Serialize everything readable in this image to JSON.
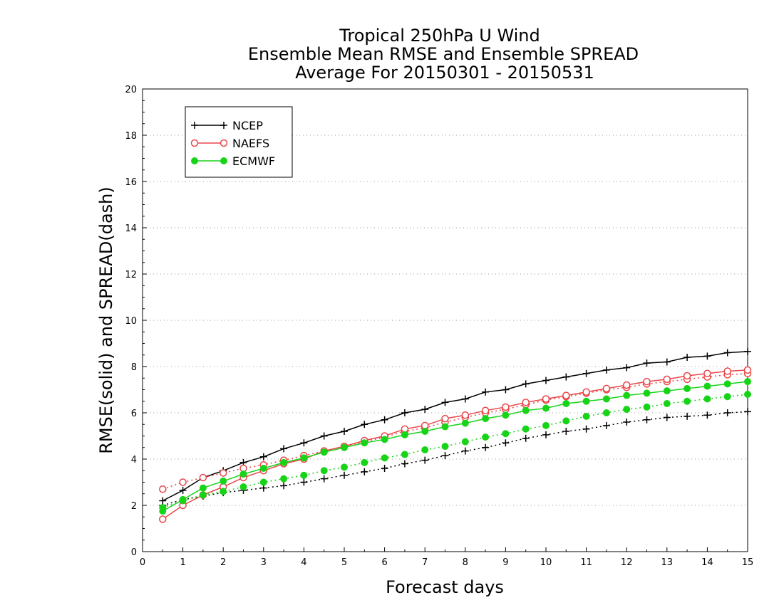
{
  "chart_data": {
    "type": "line",
    "title_lines": [
      "Tropical 250hPa U Wind",
      "Ensemble Mean RMSE and Ensemble SPREAD",
      "Average For 20150301 - 20150531"
    ],
    "xlabel": "Forecast days",
    "ylabel": "RMSE(solid) and SPREAD(dash)",
    "xlim": [
      0,
      15
    ],
    "ylim": [
      0,
      20
    ],
    "x_ticks": [
      "0",
      "1",
      "2",
      "3",
      "4",
      "5",
      "6",
      "7",
      "8",
      "9",
      "10",
      "11",
      "12",
      "13",
      "14",
      "15"
    ],
    "y_ticks": [
      "0",
      "2",
      "4",
      "6",
      "8",
      "10",
      "12",
      "14",
      "16",
      "18",
      "20"
    ],
    "y_tick_values": [
      0,
      2,
      4,
      6,
      8,
      10,
      12,
      14,
      16,
      18,
      20
    ],
    "grid": "horizontal dotted",
    "legend_position": "top-left",
    "x": [
      0.5,
      1,
      1.5,
      2,
      2.5,
      3,
      3.5,
      4,
      4.5,
      5,
      5.5,
      6,
      6.5,
      7,
      7.5,
      8,
      8.5,
      9,
      9.5,
      10,
      10.5,
      11,
      11.5,
      12,
      12.5,
      13,
      13.5,
      14,
      14.5,
      15
    ],
    "series": [
      {
        "name": "NCEP",
        "color": "#000000",
        "marker": "plus",
        "rmse": [
          2.2,
          2.65,
          3.2,
          3.5,
          3.85,
          4.1,
          4.45,
          4.7,
          5.0,
          5.2,
          5.5,
          5.7,
          6.0,
          6.15,
          6.45,
          6.6,
          6.9,
          7.0,
          7.25,
          7.4,
          7.55,
          7.7,
          7.85,
          7.95,
          8.15,
          8.2,
          8.4,
          8.45,
          8.6,
          8.65
        ],
        "spread": [
          2.0,
          2.25,
          2.4,
          2.55,
          2.65,
          2.75,
          2.85,
          3.0,
          3.15,
          3.3,
          3.45,
          3.6,
          3.8,
          3.95,
          4.15,
          4.35,
          4.5,
          4.7,
          4.9,
          5.05,
          5.2,
          5.3,
          5.45,
          5.6,
          5.7,
          5.8,
          5.85,
          5.9,
          6.0,
          6.05
        ]
      },
      {
        "name": "NAEFS",
        "color": "#e8474a",
        "marker": "open-circle",
        "rmse": [
          1.4,
          2.0,
          2.45,
          2.8,
          3.2,
          3.5,
          3.8,
          4.0,
          4.35,
          4.55,
          4.8,
          5.0,
          5.3,
          5.45,
          5.75,
          5.9,
          6.1,
          6.25,
          6.45,
          6.6,
          6.75,
          6.9,
          7.05,
          7.2,
          7.35,
          7.45,
          7.6,
          7.7,
          7.8,
          7.85
        ],
        "spread": [
          2.7,
          3.0,
          3.2,
          3.4,
          3.6,
          3.75,
          3.95,
          4.15,
          4.35,
          4.55,
          4.75,
          4.95,
          5.2,
          5.35,
          5.6,
          5.8,
          6.0,
          6.15,
          6.35,
          6.55,
          6.7,
          6.85,
          7.0,
          7.1,
          7.25,
          7.35,
          7.45,
          7.55,
          7.65,
          7.7
        ]
      },
      {
        "name": "ECMWF",
        "color": "#18d418",
        "marker": "filled-circle",
        "rmse": [
          1.75,
          2.25,
          2.75,
          3.05,
          3.35,
          3.6,
          3.85,
          4.05,
          4.3,
          4.5,
          4.7,
          4.85,
          5.05,
          5.2,
          5.4,
          5.55,
          5.75,
          5.9,
          6.1,
          6.2,
          6.4,
          6.5,
          6.6,
          6.75,
          6.85,
          6.95,
          7.05,
          7.15,
          7.25,
          7.35
        ],
        "spread": [
          1.9,
          2.2,
          2.45,
          2.6,
          2.8,
          3.0,
          3.15,
          3.3,
          3.5,
          3.65,
          3.85,
          4.05,
          4.2,
          4.4,
          4.55,
          4.75,
          4.95,
          5.1,
          5.3,
          5.45,
          5.65,
          5.85,
          6.0,
          6.15,
          6.25,
          6.4,
          6.5,
          6.6,
          6.7,
          6.8
        ]
      }
    ]
  }
}
